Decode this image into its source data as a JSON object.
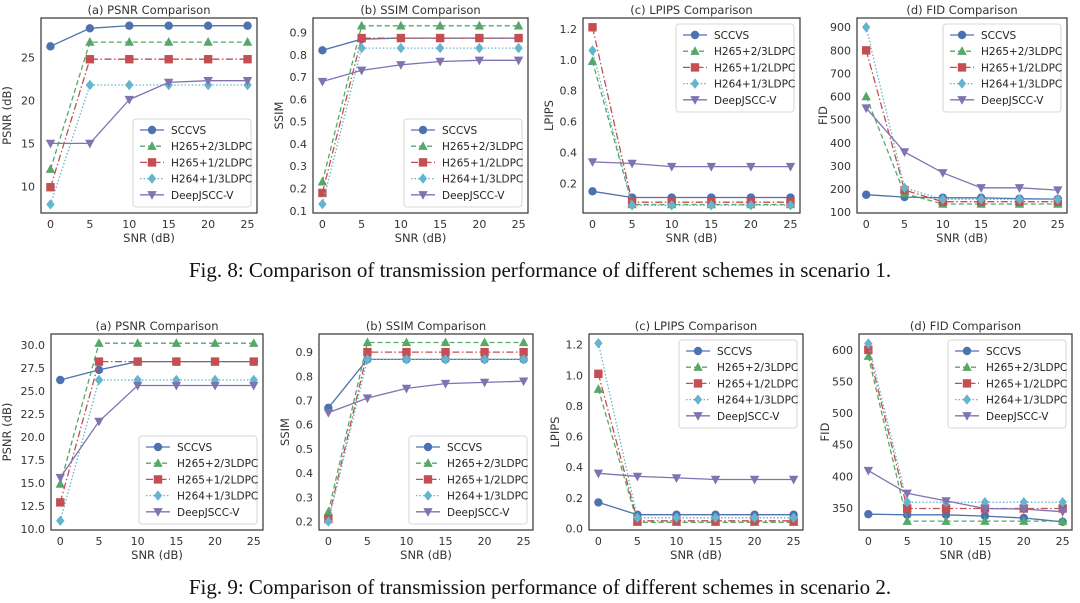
{
  "captions": {
    "fig8": "Fig. 8: Comparison of transmission performance of different schemes in scenario 1.",
    "fig9": "Fig. 9: Comparison of transmission performance of different schemes in scenario 2."
  },
  "series_styles": [
    {
      "name": "SCCVS",
      "color": "#4c72b0",
      "marker": "circle",
      "dash": "solid"
    },
    {
      "name": "H265+2/3LDPC",
      "color": "#55a868",
      "marker": "triangle-up",
      "dash": "dashed"
    },
    {
      "name": "H265+1/2LDPC",
      "color": "#c44e52",
      "marker": "square",
      "dash": "dashdot"
    },
    {
      "name": "H264+1/3LDPC",
      "color": "#64b5cd",
      "marker": "diamond",
      "dash": "dotted"
    },
    {
      "name": "DeepJSCC-V",
      "color": "#8172b2",
      "marker": "triangle-down",
      "dash": "solid"
    }
  ],
  "chart_data": [
    {
      "figure": "Fig. 8",
      "type": "line",
      "title": "(a) PSNR Comparison",
      "xlabel": "SNR (dB)",
      "ylabel": "PSNR (dB)",
      "x": [
        0,
        5,
        10,
        15,
        20,
        25
      ],
      "xticks": [
        "0",
        "5",
        "10",
        "15",
        "20",
        "25"
      ],
      "yticks": [
        10,
        15,
        20,
        25
      ],
      "yticklabels": [
        "10",
        "15",
        "20",
        "25"
      ],
      "ylim": [
        6.9,
        29.6
      ],
      "legend": "lower-right",
      "series": [
        {
          "name": "SCCVS",
          "values": [
            26.3,
            28.4,
            28.7,
            28.7,
            28.7,
            28.7
          ]
        },
        {
          "name": "H265+2/3LDPC",
          "values": [
            12.0,
            26.8,
            26.8,
            26.8,
            26.8,
            26.8
          ]
        },
        {
          "name": "H265+1/2LDPC",
          "values": [
            9.9,
            24.8,
            24.8,
            24.8,
            24.8,
            24.8
          ]
        },
        {
          "name": "H264+1/3LDPC",
          "values": [
            7.9,
            21.8,
            21.8,
            21.8,
            21.8,
            21.8
          ]
        },
        {
          "name": "DeepJSCC-V",
          "values": [
            15.0,
            15.0,
            20.1,
            22.1,
            22.3,
            22.3
          ]
        }
      ]
    },
    {
      "figure": "Fig. 8",
      "type": "line",
      "title": "(b) SSIM Comparison",
      "xlabel": "SNR (dB)",
      "ylabel": "SSIM",
      "x": [
        0,
        5,
        10,
        15,
        20,
        25
      ],
      "xticks": [
        "0",
        "5",
        "10",
        "15",
        "20",
        "25"
      ],
      "yticks": [
        0.1,
        0.2,
        0.3,
        0.4,
        0.5,
        0.6,
        0.7,
        0.8,
        0.9
      ],
      "yticklabels": [
        "0.1",
        "0.2",
        "0.3",
        "0.4",
        "0.5",
        "0.6",
        "0.7",
        "0.8",
        "0.9"
      ],
      "ylim": [
        0.09,
        0.965
      ],
      "legend": "lower-right",
      "series": [
        {
          "name": "SCCVS",
          "values": [
            0.82,
            0.87,
            0.875,
            0.875,
            0.875,
            0.875
          ]
        },
        {
          "name": "H265+2/3LDPC",
          "values": [
            0.23,
            0.93,
            0.93,
            0.93,
            0.93,
            0.93
          ]
        },
        {
          "name": "H265+1/2LDPC",
          "values": [
            0.18,
            0.875,
            0.875,
            0.875,
            0.875,
            0.875
          ]
        },
        {
          "name": "H264+1/3LDPC",
          "values": [
            0.13,
            0.83,
            0.83,
            0.83,
            0.83,
            0.83
          ]
        },
        {
          "name": "DeepJSCC-V",
          "values": [
            0.68,
            0.73,
            0.755,
            0.77,
            0.775,
            0.775
          ]
        }
      ]
    },
    {
      "figure": "Fig. 8",
      "type": "line",
      "title": "(c) LPIPS Comparison",
      "xlabel": "SNR (dB)",
      "ylabel": "LPIPS",
      "x": [
        0,
        5,
        10,
        15,
        20,
        25
      ],
      "xticks": [
        "0",
        "5",
        "10",
        "15",
        "20",
        "25"
      ],
      "yticks": [
        0.2,
        0.4,
        0.6,
        0.8,
        1.0,
        1.2
      ],
      "yticklabels": [
        "0.2",
        "0.4",
        "0.6",
        "0.8",
        "1.0",
        "1.2"
      ],
      "ylim": [
        0.01,
        1.27
      ],
      "legend": "upper-right",
      "series": [
        {
          "name": "SCCVS",
          "values": [
            0.15,
            0.11,
            0.11,
            0.11,
            0.11,
            0.11
          ]
        },
        {
          "name": "H265+2/3LDPC",
          "values": [
            0.99,
            0.065,
            0.065,
            0.065,
            0.065,
            0.065
          ]
        },
        {
          "name": "H265+1/2LDPC",
          "values": [
            1.21,
            0.08,
            0.08,
            0.08,
            0.08,
            0.08
          ]
        },
        {
          "name": "H264+1/3LDPC",
          "values": [
            1.06,
            0.06,
            0.06,
            0.06,
            0.06,
            0.06
          ]
        },
        {
          "name": "DeepJSCC-V",
          "values": [
            0.34,
            0.33,
            0.31,
            0.31,
            0.31,
            0.31
          ]
        }
      ]
    },
    {
      "figure": "Fig. 8",
      "type": "line",
      "title": "(d) FID Comparison",
      "xlabel": "SNR (dB)",
      "ylabel": "FID",
      "x": [
        0,
        5,
        10,
        15,
        20,
        25
      ],
      "xticks": [
        "0",
        "5",
        "10",
        "15",
        "20",
        "25"
      ],
      "yticks": [
        100,
        200,
        300,
        400,
        500,
        600,
        700,
        800,
        900
      ],
      "yticklabels": [
        "100",
        "200",
        "300",
        "400",
        "500",
        "600",
        "700",
        "800",
        "900"
      ],
      "ylim": [
        96,
        940
      ],
      "legend": "upper-right",
      "series": [
        {
          "name": "SCCVS",
          "values": [
            175,
            165,
            162,
            162,
            158,
            156
          ]
        },
        {
          "name": "H265+2/3LDPC",
          "values": [
            600,
            180,
            135,
            135,
            135,
            135
          ]
        },
        {
          "name": "H265+1/2LDPC",
          "values": [
            800,
            195,
            145,
            145,
            145,
            145
          ]
        },
        {
          "name": "H264+1/3LDPC",
          "values": [
            900,
            205,
            155,
            155,
            155,
            155
          ]
        },
        {
          "name": "DeepJSCC-V",
          "values": [
            550,
            360,
            270,
            205,
            205,
            195
          ]
        }
      ]
    },
    {
      "figure": "Fig. 9",
      "type": "line",
      "title": "(a) PSNR Comparison",
      "xlabel": "SNR (dB)",
      "ylabel": "PSNR (dB)",
      "x": [
        0,
        5,
        10,
        15,
        20,
        25
      ],
      "xticks": [
        "0",
        "5",
        "10",
        "15",
        "20",
        "25"
      ],
      "yticks": [
        10.0,
        12.5,
        15.0,
        17.5,
        20.0,
        22.5,
        25.0,
        27.5,
        30.0
      ],
      "yticklabels": [
        "10.0",
        "12.5",
        "15.0",
        "17.5",
        "20.0",
        "22.5",
        "25.0",
        "27.5",
        "30.0"
      ],
      "ylim": [
        9.9,
        31.2
      ],
      "legend": "lower-right",
      "series": [
        {
          "name": "SCCVS",
          "values": [
            26.2,
            27.3,
            28.2,
            28.2,
            28.2,
            28.2
          ]
        },
        {
          "name": "H265+2/3LDPC",
          "values": [
            14.9,
            30.2,
            30.2,
            30.2,
            30.2,
            30.2
          ]
        },
        {
          "name": "H265+1/2LDPC",
          "values": [
            12.9,
            28.2,
            28.2,
            28.2,
            28.2,
            28.2
          ]
        },
        {
          "name": "H264+1/3LDPC",
          "values": [
            10.9,
            26.2,
            26.2,
            26.2,
            26.2,
            26.2
          ]
        },
        {
          "name": "DeepJSCC-V",
          "values": [
            15.6,
            21.7,
            25.6,
            25.6,
            25.6,
            25.6
          ]
        }
      ]
    },
    {
      "figure": "Fig. 9",
      "type": "line",
      "title": "(b) SSIM Comparison",
      "xlabel": "SNR (dB)",
      "ylabel": "SSIM",
      "x": [
        0,
        5,
        10,
        15,
        20,
        25
      ],
      "xticks": [
        "0",
        "5",
        "10",
        "15",
        "20",
        "25"
      ],
      "yticks": [
        0.2,
        0.3,
        0.4,
        0.5,
        0.6,
        0.7,
        0.8,
        0.9
      ],
      "yticklabels": [
        "0.2",
        "0.3",
        "0.4",
        "0.5",
        "0.6",
        "0.7",
        "0.8",
        "0.9"
      ],
      "ylim": [
        0.165,
        0.975
      ],
      "legend": "lower-right",
      "series": [
        {
          "name": "SCCVS",
          "values": [
            0.67,
            0.87,
            0.87,
            0.87,
            0.87,
            0.87
          ]
        },
        {
          "name": "H265+2/3LDPC",
          "values": [
            0.24,
            0.94,
            0.94,
            0.94,
            0.94,
            0.94
          ]
        },
        {
          "name": "H265+1/2LDPC",
          "values": [
            0.21,
            0.9,
            0.9,
            0.9,
            0.9,
            0.9
          ]
        },
        {
          "name": "H264+1/3LDPC",
          "values": [
            0.2,
            0.87,
            0.87,
            0.87,
            0.87,
            0.87
          ]
        },
        {
          "name": "DeepJSCC-V",
          "values": [
            0.65,
            0.71,
            0.75,
            0.77,
            0.775,
            0.78
          ]
        }
      ]
    },
    {
      "figure": "Fig. 9",
      "type": "line",
      "title": "(c) LPIPS Comparison",
      "xlabel": "SNR (dB)",
      "ylabel": "LPIPS",
      "x": [
        0,
        5,
        10,
        15,
        20,
        25
      ],
      "xticks": [
        "0",
        "5",
        "10",
        "15",
        "20",
        "25"
      ],
      "yticks": [
        0.0,
        0.2,
        0.4,
        0.6,
        0.8,
        1.0,
        1.2
      ],
      "yticklabels": [
        "0.0",
        "0.2",
        "0.4",
        "0.6",
        "0.8",
        "1.0",
        "1.2"
      ],
      "ylim": [
        -0.01,
        1.27
      ],
      "legend": "upper-right",
      "series": [
        {
          "name": "SCCVS",
          "values": [
            0.17,
            0.09,
            0.09,
            0.09,
            0.09,
            0.09
          ]
        },
        {
          "name": "H265+2/3LDPC",
          "values": [
            0.91,
            0.04,
            0.04,
            0.04,
            0.04,
            0.04
          ]
        },
        {
          "name": "H265+1/2LDPC",
          "values": [
            1.01,
            0.05,
            0.05,
            0.05,
            0.05,
            0.05
          ]
        },
        {
          "name": "H264+1/3LDPC",
          "values": [
            1.21,
            0.07,
            0.07,
            0.07,
            0.07,
            0.07
          ]
        },
        {
          "name": "DeepJSCC-V",
          "values": [
            0.36,
            0.34,
            0.33,
            0.32,
            0.32,
            0.32
          ]
        }
      ]
    },
    {
      "figure": "Fig. 9",
      "type": "line",
      "title": "(d) FID Comparison",
      "xlabel": "SNR (dB)",
      "ylabel": "FID",
      "x": [
        0,
        5,
        10,
        15,
        20,
        25
      ],
      "xticks": [
        "0",
        "5",
        "10",
        "15",
        "20",
        "25"
      ],
      "yticks": [
        350,
        400,
        450,
        500,
        550,
        600
      ],
      "yticklabels": [
        "350",
        "400",
        "450",
        "500",
        "550",
        "600"
      ],
      "ylim": [
        315,
        625
      ],
      "legend": "upper-right",
      "series": [
        {
          "name": "SCCVS",
          "values": [
            340,
            339,
            339,
            337,
            334,
            328
          ]
        },
        {
          "name": "H265+2/3LDPC",
          "values": [
            590,
            329,
            329,
            329,
            329,
            329
          ]
        },
        {
          "name": "H265+1/2LDPC",
          "values": [
            600,
            349,
            349,
            349,
            349,
            349
          ]
        },
        {
          "name": "H264+1/3LDPC",
          "values": [
            610,
            359,
            359,
            359,
            359,
            359
          ]
        },
        {
          "name": "DeepJSCC-V",
          "values": [
            409,
            373,
            361,
            349,
            348,
            344
          ]
        }
      ]
    }
  ]
}
